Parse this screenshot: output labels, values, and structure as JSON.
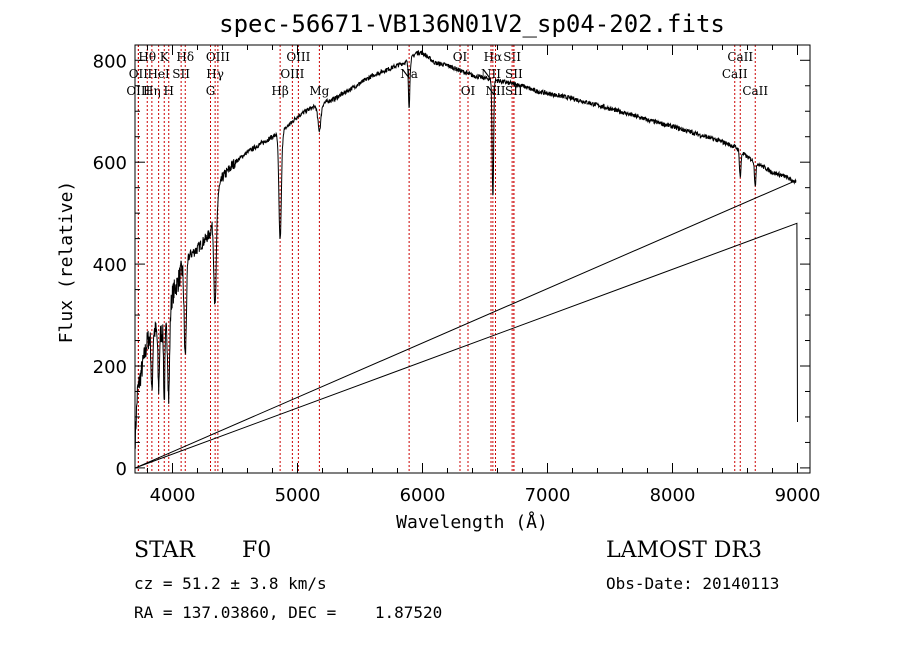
{
  "chart_data": {
    "type": "line",
    "title": "spec-56671-VB136N01V2_sp04-202.fits",
    "xlabel": "Wavelength (Å)",
    "ylabel": "Flux (relative)",
    "xlim": [
      3700,
      9100
    ],
    "ylim": [
      -10,
      830
    ],
    "x_ticks": [
      4000,
      5000,
      6000,
      7000,
      8000,
      9000
    ],
    "y_ticks": [
      0,
      200,
      400,
      600,
      800
    ],
    "x_tick_labels": [
      "4000",
      "5000",
      "6000",
      "7000",
      "8000",
      "9000"
    ],
    "y_tick_labels": [
      "0",
      "200",
      "400",
      "600",
      "800"
    ],
    "series": [
      {
        "name": "flux",
        "continuum": [
          [
            3700,
            50
          ],
          [
            3720,
            150
          ],
          [
            3760,
            200
          ],
          [
            3800,
            250
          ],
          [
            3850,
            270
          ],
          [
            3900,
            265
          ],
          [
            3950,
            270
          ],
          [
            4000,
            340
          ],
          [
            4050,
            370
          ],
          [
            4100,
            410
          ],
          [
            4200,
            430
          ],
          [
            4300,
            460
          ],
          [
            4350,
            530
          ],
          [
            4400,
            570
          ],
          [
            4500,
            600
          ],
          [
            4600,
            620
          ],
          [
            4700,
            635
          ],
          [
            4800,
            650
          ],
          [
            4900,
            665
          ],
          [
            5000,
            690
          ],
          [
            5100,
            705
          ],
          [
            5200,
            715
          ],
          [
            5300,
            725
          ],
          [
            5400,
            740
          ],
          [
            5500,
            755
          ],
          [
            5600,
            770
          ],
          [
            5700,
            780
          ],
          [
            5800,
            790
          ],
          [
            5900,
            800
          ],
          [
            5950,
            815
          ],
          [
            6000,
            815
          ],
          [
            6100,
            795
          ],
          [
            6200,
            790
          ],
          [
            6300,
            780
          ],
          [
            6400,
            770
          ],
          [
            6500,
            765
          ],
          [
            6600,
            760
          ],
          [
            6700,
            755
          ],
          [
            6800,
            750
          ],
          [
            6900,
            740
          ],
          [
            7000,
            735
          ],
          [
            7200,
            725
          ],
          [
            7400,
            712
          ],
          [
            7600,
            698
          ],
          [
            7800,
            683
          ],
          [
            8000,
            670
          ],
          [
            8200,
            655
          ],
          [
            8400,
            640
          ],
          [
            8500,
            630
          ],
          [
            8600,
            610
          ],
          [
            8700,
            595
          ],
          [
            8800,
            580
          ],
          [
            8900,
            572
          ],
          [
            8990,
            560
          ]
        ],
        "absorption_lines": [
          {
            "wave": 3835,
            "depth": 120,
            "width": 6
          },
          {
            "wave": 3889,
            "depth": 110,
            "width": 6
          },
          {
            "wave": 3934,
            "depth": 140,
            "width": 5
          },
          {
            "wave": 3970,
            "depth": 160,
            "width": 7
          },
          {
            "wave": 4102,
            "depth": 190,
            "width": 9
          },
          {
            "wave": 4341,
            "depth": 200,
            "width": 10
          },
          {
            "wave": 4861,
            "depth": 210,
            "width": 10
          },
          {
            "wave": 5175,
            "depth": 50,
            "width": 12
          },
          {
            "wave": 5893,
            "depth": 90,
            "width": 6
          },
          {
            "wave": 6563,
            "depth": 230,
            "width": 6
          },
          {
            "wave": 8542,
            "depth": 50,
            "width": 6
          },
          {
            "wave": 8662,
            "depth": 45,
            "width": 6
          }
        ],
        "edges": [
          {
            "wave": 3702,
            "flux": 0
          },
          {
            "wave": 8995,
            "flux": 480
          },
          {
            "wave": 9000,
            "flux": 90
          }
        ]
      }
    ],
    "line_markers": [
      {
        "label": "Hθ",
        "wave": 3798,
        "row": 0
      },
      {
        "label": "OII",
        "wave": 3727,
        "row": 1
      },
      {
        "label": "OIII",
        "wave": 3727,
        "row": 2
      },
      {
        "label": "Hη",
        "wave": 3835,
        "row": 2
      },
      {
        "label": "K",
        "wave": 3934,
        "row": 0
      },
      {
        "label": "HeI",
        "wave": 3889,
        "row": 1
      },
      {
        "label": "H",
        "wave": 3970,
        "row": 2
      },
      {
        "label": "Hδ",
        "wave": 4102,
        "row": 0
      },
      {
        "label": "SII",
        "wave": 4069,
        "row": 1
      },
      {
        "label": "OIII",
        "wave": 4363,
        "row": 0
      },
      {
        "label": "Hγ",
        "wave": 4341,
        "row": 1
      },
      {
        "label": "G",
        "wave": 4304,
        "row": 2
      },
      {
        "label": "Hβ",
        "wave": 4861,
        "row": 2
      },
      {
        "label": "OIII",
        "wave": 5007,
        "row": 0
      },
      {
        "label": "OIII",
        "wave": 4959,
        "row": 1
      },
      {
        "label": "Mg",
        "wave": 5175,
        "row": 2
      },
      {
        "label": "Na",
        "wave": 5893,
        "row": 1
      },
      {
        "label": "OI",
        "wave": 6300,
        "row": 0
      },
      {
        "label": "OI",
        "wave": 6364,
        "row": 2
      },
      {
        "label": "Hα",
        "wave": 6563,
        "row": 0
      },
      {
        "label": "NII",
        "wave": 6548,
        "row": 1
      },
      {
        "label": "NII",
        "wave": 6584,
        "row": 2
      },
      {
        "label": "SII",
        "wave": 6717,
        "row": 0
      },
      {
        "label": "SII",
        "wave": 6731,
        "row": 1
      },
      {
        "label": "SII",
        "wave": 6731,
        "row": 2
      },
      {
        "label": "CaII",
        "wave": 8542,
        "row": 0
      },
      {
        "label": "CaII",
        "wave": 8498,
        "row": 1
      },
      {
        "label": "CaII",
        "wave": 8662,
        "row": 2
      }
    ]
  },
  "info": {
    "object_class": "STAR",
    "subclass": "F0",
    "survey": "LAMOST DR3",
    "redshift_text": "cz = 51.2 ± 3.8 km/s",
    "obs_date": "Obs-Date: 20140113",
    "coords": "RA = 137.03860, DEC =    1.87520"
  },
  "colors": {
    "spectrum": "#000000",
    "marker": "#cc0000",
    "axes": "#000000",
    "background": "#ffffff"
  }
}
